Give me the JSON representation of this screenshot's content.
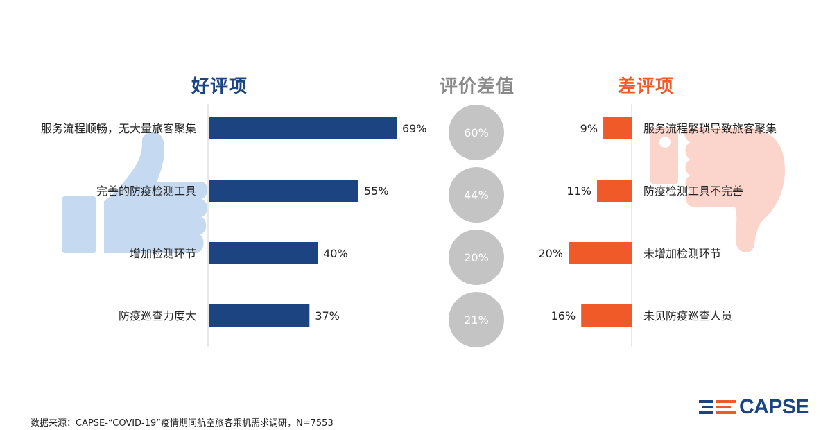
{
  "headers": {
    "good": "好评项",
    "diff": "评价差值",
    "bad": "差评项"
  },
  "chart_data": {
    "type": "bar",
    "good": {
      "categories": [
        "服务流程顺畅，无大量旅客聚集",
        "完善的防疫检测工具",
        "增加检测环节",
        "防疫巡查力度大"
      ],
      "values": [
        69,
        55,
        40,
        37
      ],
      "labels": [
        "69%",
        "55%",
        "40%",
        "37%"
      ],
      "color": "#1b4480"
    },
    "diff": {
      "values": [
        60,
        44,
        20,
        21
      ],
      "labels": [
        "60%",
        "44%",
        "20%",
        "21%"
      ],
      "color": "#c4c4c4"
    },
    "bad": {
      "categories": [
        "服务流程繁琐导致旅客聚集",
        "防疫检测工具不完善",
        "未增加检测环节",
        "未见防疫巡查人员"
      ],
      "values": [
        9,
        11,
        20,
        16
      ],
      "labels": [
        "9%",
        "11%",
        "20%",
        "16%"
      ],
      "color": "#f05a28"
    },
    "icons": {
      "left": "thumbs-up-icon",
      "right": "thumbs-down-icon",
      "left_color": "#c5d9f1",
      "right_color": "#fbd5cb"
    }
  },
  "footer": {
    "source": "数据来源：CAPSE-“COVID-19”疫情期间航空旅客乘机需求调研，N=7553",
    "logo_text": "CAPSE"
  }
}
